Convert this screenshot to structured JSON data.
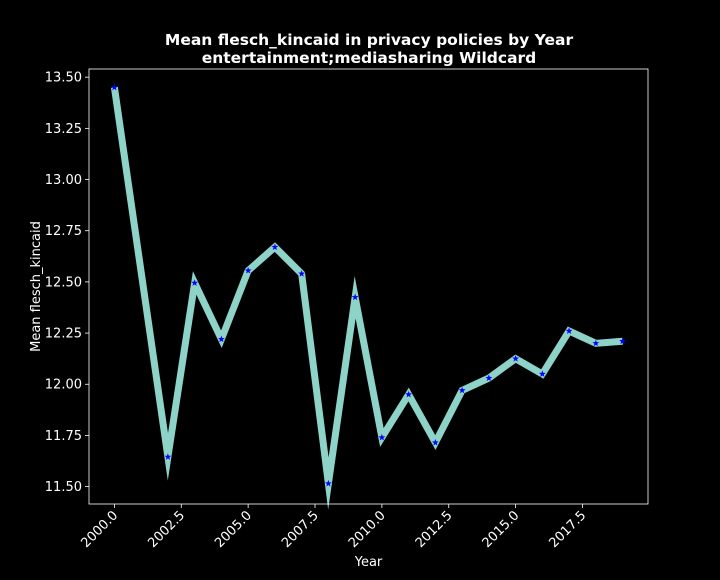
{
  "chart_data": {
    "type": "line",
    "title": "Mean flesch_kincaid in privacy policies by Year",
    "subtitle": "entertainment;mediasharing Wildcard",
    "xlabel": "Year",
    "ylabel": "Mean flesch_kincaid",
    "xlim": [
      1999.05,
      2019.95
    ],
    "ylim": [
      11.415,
      13.54
    ],
    "x_ticks": [
      "2000.0",
      "2002.5",
      "2005.0",
      "2007.5",
      "2010.0",
      "2012.5",
      "2015.0",
      "2017.5"
    ],
    "x_tick_values": [
      2000,
      2002.5,
      2005,
      2007.5,
      2010,
      2012.5,
      2015,
      2017.5
    ],
    "y_ticks": [
      "11.50",
      "11.75",
      "12.00",
      "12.25",
      "12.50",
      "12.75",
      "13.00",
      "13.25",
      "13.50"
    ],
    "y_tick_values": [
      11.5,
      11.75,
      12.0,
      12.25,
      12.5,
      12.75,
      13.0,
      13.25,
      13.5
    ],
    "grid": false,
    "series": [
      {
        "x": [
          2000,
          2002,
          2003,
          2004,
          2005,
          2006,
          2007,
          2008,
          2009,
          2010,
          2011,
          2012,
          2013,
          2014,
          2015,
          2016,
          2017,
          2018,
          2019
        ],
        "y": [
          13.45,
          11.645,
          12.495,
          12.22,
          12.555,
          12.67,
          12.54,
          11.515,
          12.425,
          11.74,
          11.95,
          11.715,
          11.97,
          12.03,
          12.125,
          12.05,
          12.26,
          12.2,
          12.21
        ],
        "line_color": "#8dd3c7",
        "marker": "star",
        "marker_color": "#0000ff"
      }
    ]
  }
}
